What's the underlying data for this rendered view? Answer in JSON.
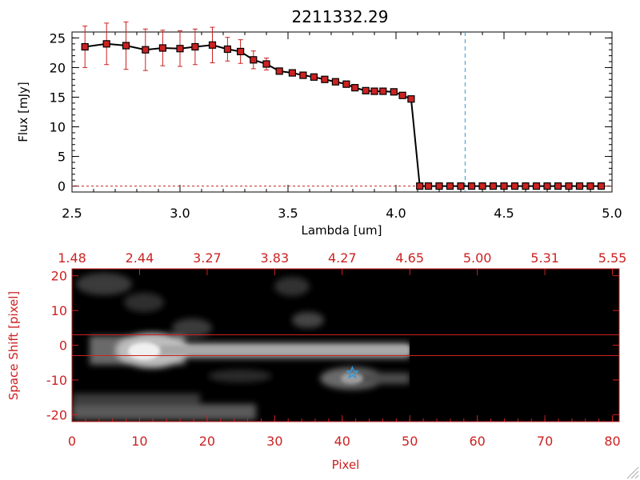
{
  "chart_data": [
    {
      "type": "scatter",
      "title": "2211332.29",
      "xlabel": "Lambda [um]",
      "ylabel": "Flux [mJy]",
      "xlim": [
        2.5,
        5.0
      ],
      "ylim": [
        -1,
        26
      ],
      "xticks": [
        "2.5",
        "3.0",
        "3.5",
        "4.0",
        "4.5",
        "5.0"
      ],
      "yticks": [
        "0",
        "5",
        "10",
        "15",
        "20",
        "25"
      ],
      "series": [
        {
          "x": [
            2.56,
            2.66,
            2.75,
            2.84,
            2.92,
            3.0,
            3.07,
            3.15,
            3.22,
            3.28,
            3.34,
            3.4,
            3.46,
            3.52,
            3.57,
            3.62,
            3.67,
            3.72,
            3.77,
            3.81,
            3.86,
            3.9,
            3.94,
            3.99,
            4.03,
            4.07,
            4.11,
            4.15,
            4.2,
            4.25,
            4.3,
            4.35,
            4.4,
            4.45,
            4.5,
            4.55,
            4.6,
            4.65,
            4.7,
            4.75,
            4.8,
            4.85,
            4.9,
            4.95
          ],
          "y": [
            23.5,
            24.0,
            23.7,
            23.0,
            23.3,
            23.2,
            23.5,
            23.8,
            23.1,
            22.7,
            21.3,
            20.6,
            19.4,
            19.1,
            18.7,
            18.4,
            18.0,
            17.6,
            17.2,
            16.6,
            16.1,
            16.0,
            16.0,
            15.9,
            15.3,
            14.7,
            0,
            0,
            0,
            0,
            0,
            0,
            0,
            0,
            0,
            0,
            0,
            0,
            0,
            0,
            0,
            0,
            0,
            0
          ],
          "yerr": [
            3.5,
            3.5,
            4.0,
            3.5,
            3.0,
            3.0,
            3.0,
            3.0,
            2.0,
            2.0,
            1.5,
            1.0,
            0.5,
            0.5,
            0.5,
            0.5,
            0.5,
            0.5,
            0.5,
            0.5,
            0.5,
            0.5,
            0.5,
            0.5,
            0.5,
            0.5,
            0,
            0,
            0,
            0,
            0,
            0,
            0,
            0,
            0,
            0,
            0,
            0,
            0,
            0,
            0,
            0,
            0,
            0
          ],
          "marker_color": "#cc2222",
          "line_color": "#000000"
        }
      ],
      "reference_line_x": 4.32,
      "reference_line_color": "#3399cc",
      "zero_line_color": "#cc2222"
    },
    {
      "type": "heatmap",
      "xlabel": "Pixel",
      "ylabel": "Space Shift [pixel]",
      "xlim": [
        0,
        81
      ],
      "ylim": [
        -22,
        22
      ],
      "xticks": [
        "0",
        "10",
        "20",
        "30",
        "40",
        "50",
        "60",
        "70",
        "80"
      ],
      "yticks": [
        "-20",
        "-10",
        "0",
        "10",
        "20"
      ],
      "top_ticks": [
        "1.48",
        "2.44",
        "3.27",
        "3.83",
        "4.27",
        "4.65",
        "5.00",
        "5.31",
        "5.55"
      ],
      "horizontal_lines_y": [
        3,
        -3
      ],
      "star_marker": {
        "x": 41.5,
        "y": -8,
        "color": "#3399dd"
      },
      "data_extent_x": 50,
      "axis_color": "#cc2222"
    }
  ]
}
